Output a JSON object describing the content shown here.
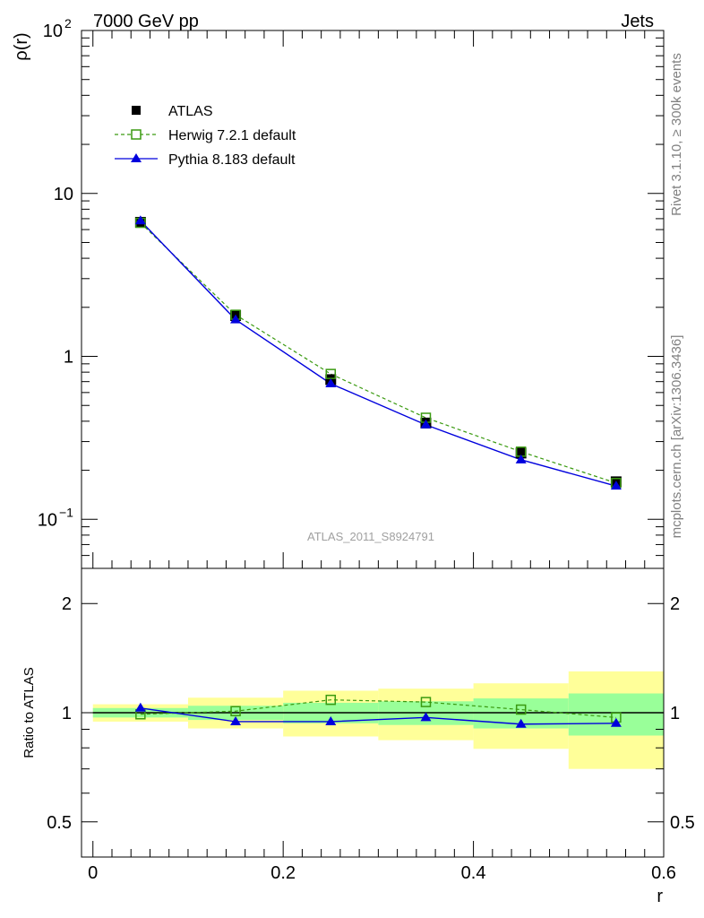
{
  "header": {
    "left": "7000 GeV pp",
    "right": "Jets"
  },
  "side_labels": {
    "rivet": "Rivet 3.1.10, ≥ 300k events",
    "mcplots": "mcplots.cern.ch [arXiv:1306.3436]"
  },
  "watermark": "ATLAS_2011_S8924791",
  "colors": {
    "atlas": "#000000",
    "herwig": "#3a9a10",
    "pythia": "#0000dd",
    "band_inner": "#99ff99",
    "band_outer": "#ffff99"
  },
  "chart_data": [
    {
      "type": "line",
      "scale": "log",
      "ylabel": "ρ(r)",
      "xlim": [
        -0.012,
        0.6
      ],
      "ylim": [
        0.05,
        100
      ],
      "y_ticks": [
        {
          "value": 100,
          "base": "10",
          "exp": "2"
        },
        {
          "value": 10,
          "base": "10",
          "exp": ""
        },
        {
          "value": 1,
          "base": "1",
          "exp": ""
        },
        {
          "value": 0.1,
          "base": "10",
          "exp": "−1"
        }
      ],
      "x": [
        0.05,
        0.15,
        0.25,
        0.35,
        0.45,
        0.55
      ],
      "series": [
        {
          "name": "ATLAS",
          "marker": "square-filled",
          "values": [
            6.65,
            1.78,
            0.72,
            0.39,
            0.255,
            0.17
          ]
        },
        {
          "name": "Herwig 7.2.1 default",
          "marker": "square-open",
          "dashed": true,
          "values": [
            6.6,
            1.8,
            0.78,
            0.42,
            0.26,
            0.167
          ]
        },
        {
          "name": "Pythia 8.183 default",
          "marker": "triangle",
          "values": [
            6.8,
            1.68,
            0.68,
            0.38,
            0.232,
            0.16
          ]
        }
      ]
    },
    {
      "type": "line",
      "scale": "log",
      "ylabel": "Ratio to ATLAS",
      "xlabel": "r",
      "xlim": [
        -0.012,
        0.6
      ],
      "ylim": [
        0.4,
        2.5
      ],
      "y_ticks": [
        {
          "value": 2,
          "label": "2"
        },
        {
          "value": 1,
          "label": "1"
        },
        {
          "value": 0.5,
          "label": "0.5"
        }
      ],
      "x_ticks": [
        {
          "value": 0,
          "label": "0"
        },
        {
          "value": 0.2,
          "label": "0.2"
        },
        {
          "value": 0.4,
          "label": "0.4"
        },
        {
          "value": 0.6,
          "label": "0.6"
        }
      ],
      "bins": [
        [
          0,
          0.1
        ],
        [
          0.1,
          0.2
        ],
        [
          0.2,
          0.3
        ],
        [
          0.3,
          0.4
        ],
        [
          0.4,
          0.5
        ],
        [
          0.5,
          0.6
        ]
      ],
      "band_inner": [
        [
          0.97,
          1.03
        ],
        [
          0.955,
          1.045
        ],
        [
          0.935,
          1.065
        ],
        [
          0.925,
          1.075
        ],
        [
          0.905,
          1.095
        ],
        [
          0.865,
          1.13
        ]
      ],
      "band_outer": [
        [
          0.945,
          1.055
        ],
        [
          0.905,
          1.1
        ],
        [
          0.86,
          1.15
        ],
        [
          0.84,
          1.165
        ],
        [
          0.795,
          1.205
        ],
        [
          0.7,
          1.3
        ]
      ],
      "x": [
        0.05,
        0.15,
        0.25,
        0.35,
        0.45,
        0.55
      ],
      "series": [
        {
          "name": "Herwig 7.2.1 default",
          "values": [
            0.99,
            1.01,
            1.085,
            1.07,
            1.02,
            0.97
          ]
        },
        {
          "name": "Pythia 8.183 default",
          "values": [
            1.03,
            0.945,
            0.945,
            0.97,
            0.93,
            0.935
          ]
        }
      ]
    }
  ]
}
